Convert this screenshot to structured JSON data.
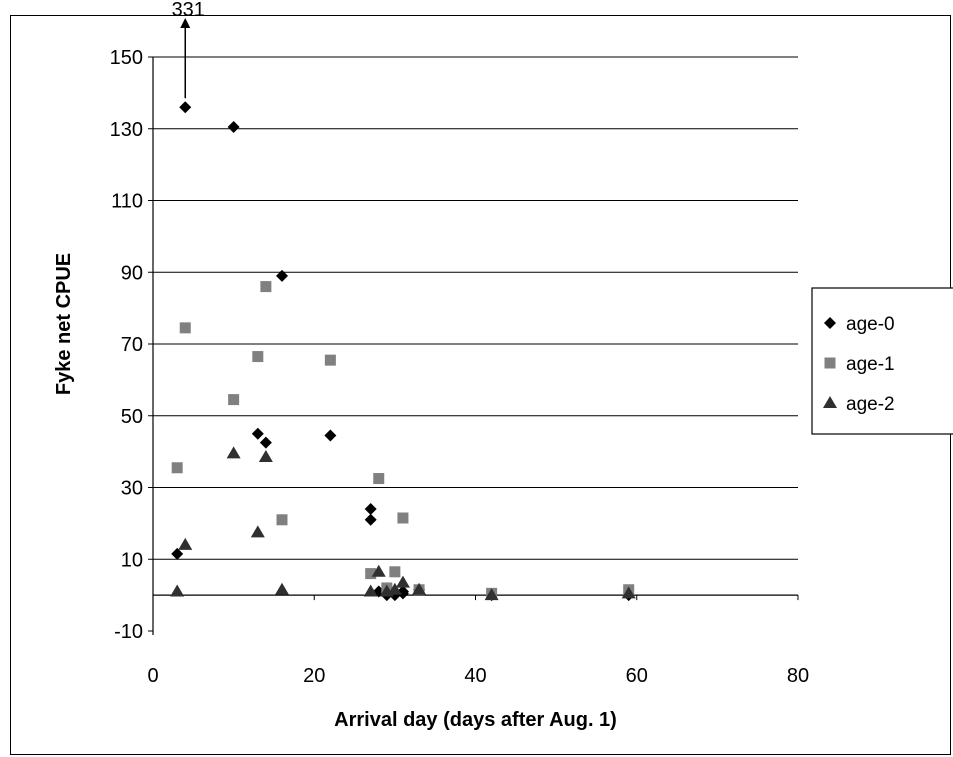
{
  "chart_data": {
    "type": "scatter",
    "title": "",
    "xlabel": "Arrival day (days after Aug. 1)",
    "ylabel": "Fyke net CPUE",
    "xlim": [
      0,
      80
    ],
    "ylim": [
      -10,
      150
    ],
    "xticks": [
      0,
      20,
      40,
      60,
      80
    ],
    "yticks": [
      -10,
      10,
      30,
      50,
      70,
      90,
      110,
      130,
      150
    ],
    "grid": "horizontal",
    "legend_position": "right",
    "annotation": {
      "text": "331",
      "x": 4,
      "y": 136,
      "meaning": "off-scale value indicated by upward arrow"
    },
    "series": [
      {
        "name": "age-0",
        "marker": "diamond",
        "color": "#000000",
        "points": [
          [
            3,
            11.5
          ],
          [
            4,
            136
          ],
          [
            10,
            130.5
          ],
          [
            13,
            45
          ],
          [
            14,
            42.5
          ],
          [
            16,
            89
          ],
          [
            22,
            44.5
          ],
          [
            27,
            24
          ],
          [
            27,
            21
          ],
          [
            28,
            1
          ],
          [
            29,
            0
          ],
          [
            30,
            0
          ],
          [
            31,
            0.5
          ],
          [
            31,
            1
          ],
          [
            33,
            1.5
          ],
          [
            42,
            0
          ],
          [
            59,
            0
          ]
        ]
      },
      {
        "name": "age-1",
        "marker": "square",
        "color": "#808080",
        "points": [
          [
            3,
            35.5
          ],
          [
            4,
            74.5
          ],
          [
            10,
            54.5
          ],
          [
            13,
            66.5
          ],
          [
            14,
            86
          ],
          [
            16,
            21
          ],
          [
            22,
            65.5
          ],
          [
            27,
            6
          ],
          [
            28,
            32.5
          ],
          [
            29,
            2
          ],
          [
            30,
            6.5
          ],
          [
            31,
            21.5
          ],
          [
            33,
            1.5
          ],
          [
            42,
            0.5
          ],
          [
            59,
            1.5
          ]
        ]
      },
      {
        "name": "age-2",
        "marker": "triangle",
        "color": "#303030",
        "points": [
          [
            3,
            1
          ],
          [
            4,
            14
          ],
          [
            10,
            39.5
          ],
          [
            13,
            17.5
          ],
          [
            14,
            38.5
          ],
          [
            16,
            1.5
          ],
          [
            27,
            1
          ],
          [
            28,
            6.5
          ],
          [
            29,
            1
          ],
          [
            30,
            1.5
          ],
          [
            31,
            3.5
          ],
          [
            33,
            1.5
          ],
          [
            42,
            0
          ],
          [
            59,
            0.5
          ]
        ]
      }
    ]
  }
}
